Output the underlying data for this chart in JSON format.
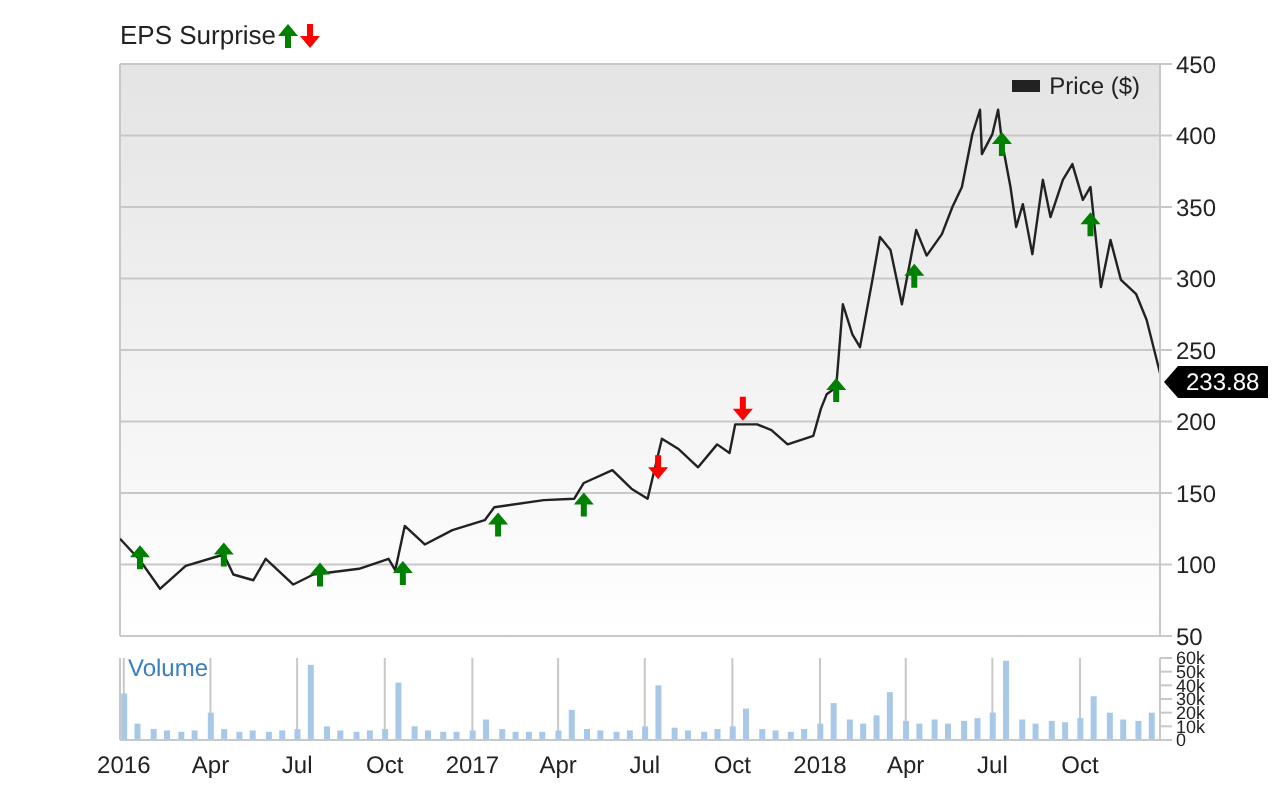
{
  "chart_data": [
    {
      "type": "line",
      "title": "EPS Surprise",
      "xlim": [
        "2015-12-28",
        "2018-12-24"
      ],
      "xticks": [
        {
          "value": "2016-01-01",
          "label": null
        },
        {
          "value": "2016-04-01",
          "label": null
        },
        {
          "value": "2016-07-01",
          "label": null
        },
        {
          "value": "2016-10-01",
          "label": null
        },
        {
          "value": "2017-01-01",
          "label": null
        },
        {
          "value": "2017-04-01",
          "label": null
        },
        {
          "value": "2017-07-01",
          "label": null
        },
        {
          "value": "2017-10-01",
          "label": null
        },
        {
          "value": "2018-01-01",
          "label": null
        },
        {
          "value": "2018-04-01",
          "label": null
        },
        {
          "value": "2018-07-01",
          "label": null
        },
        {
          "value": "2018-10-01",
          "label": null
        }
      ],
      "ylim": [
        50,
        450
      ],
      "yticks": [
        50,
        100,
        150,
        200,
        250,
        300,
        350,
        400,
        450
      ],
      "grid": true,
      "legend": "top right",
      "tick_labels": "y",
      "annotations": [
        {
          "text": "233.88",
          "x": "2018-12-24",
          "y": 233.88
        }
      ],
      "series": [
        {
          "name": "Price ($)",
          "type": "line",
          "color": "#222222",
          "x": [
            "2015-12-28",
            "2016-01-18",
            "2016-02-08",
            "2016-03-06",
            "2016-04-15",
            "2016-04-25",
            "2016-05-16",
            "2016-05-29",
            "2016-06-27",
            "2016-07-18",
            "2016-09-04",
            "2016-10-05",
            "2016-10-12",
            "2016-10-22",
            "2016-11-12",
            "2016-12-11",
            "2017-01-14",
            "2017-01-24",
            "2017-03-17",
            "2017-04-18",
            "2017-04-28",
            "2017-05-28",
            "2017-06-17",
            "2017-07-04",
            "2017-07-19",
            "2017-08-05",
            "2017-08-26",
            "2017-09-15",
            "2017-09-28",
            "2017-10-04",
            "2017-10-27",
            "2017-11-11",
            "2017-11-28",
            "2017-12-25",
            "2018-01-02",
            "2018-01-08",
            "2018-01-18",
            "2018-01-25",
            "2018-02-04",
            "2018-02-12",
            "2018-02-25",
            "2018-03-05",
            "2018-03-16",
            "2018-03-28",
            "2018-04-12",
            "2018-04-23",
            "2018-05-09",
            "2018-05-20",
            "2018-05-30",
            "2018-06-10",
            "2018-06-18",
            "2018-06-20",
            "2018-07-01",
            "2018-07-07",
            "2018-07-11",
            "2018-07-20",
            "2018-07-26",
            "2018-08-02",
            "2018-08-12",
            "2018-08-23",
            "2018-08-31",
            "2018-09-13",
            "2018-09-23",
            "2018-10-04",
            "2018-10-12",
            "2018-10-23",
            "2018-11-02",
            "2018-11-13",
            "2018-11-29",
            "2018-12-10",
            "2018-12-24"
          ],
          "values": [
            118,
            103,
            83,
            99,
            107,
            93,
            89,
            104,
            86,
            93,
            97,
            104,
            96,
            127,
            114,
            124,
            131,
            140,
            145,
            146,
            157,
            166,
            153,
            146,
            188,
            181,
            168,
            184,
            178,
            198,
            198,
            194,
            184,
            190,
            209,
            219,
            224,
            282,
            261,
            252,
            299,
            329,
            320,
            282,
            334,
            316,
            331,
            350,
            364,
            401,
            418,
            387,
            401,
            418,
            396,
            364,
            336,
            352,
            317,
            369,
            343,
            369,
            380,
            355,
            364,
            294,
            327,
            299,
            289,
            271,
            233.88
          ]
        },
        {
          "type": "scatter",
          "marker": "triangle",
          "color": "#008000",
          "x": [
            "2016-01-18",
            "2016-04-15",
            "2016-07-25",
            "2016-10-20",
            "2017-01-28",
            "2017-04-28",
            "2018-01-18",
            "2018-04-10",
            "2018-07-11",
            "2018-10-12"
          ],
          "values": [
            105,
            107,
            93,
            94,
            128,
            142,
            222,
            302,
            394,
            338
          ]
        },
        {
          "type": "scatter",
          "marker": "triangle",
          "color": "#ff0000",
          "x": [
            "2017-07-15",
            "2017-10-12"
          ],
          "values": [
            168,
            209
          ]
        }
      ]
    },
    {
      "type": "bar",
      "ylabel": "Volume",
      "xlim": [
        "2015-12-28",
        "2018-12-24"
      ],
      "xticks": [
        {
          "value": "2016-01-01",
          "label": "2016"
        },
        {
          "value": "2016-04-01",
          "label": "Apr"
        },
        {
          "value": "2016-07-01",
          "label": "Jul"
        },
        {
          "value": "2016-10-01",
          "label": "Oct"
        },
        {
          "value": "2017-01-01",
          "label": "2017"
        },
        {
          "value": "2017-04-01",
          "label": "Apr"
        },
        {
          "value": "2017-07-01",
          "label": "Jul"
        },
        {
          "value": "2017-10-01",
          "label": "Oct"
        },
        {
          "value": "2018-01-01",
          "label": "2018"
        },
        {
          "value": "2018-04-01",
          "label": "Apr"
        },
        {
          "value": "2018-07-01",
          "label": "Jul"
        },
        {
          "value": "2018-10-01",
          "label": "Oct"
        }
      ],
      "ylim": [
        0,
        60000
      ],
      "yticks": [
        0,
        {
          "value": 10000,
          "label": "10k"
        },
        {
          "value": 20000,
          "label": "20k"
        },
        {
          "value": 30000,
          "label": "30k"
        },
        {
          "value": 40000,
          "label": "40k"
        },
        {
          "value": 50000,
          "label": "50k"
        },
        {
          "value": 60000,
          "label": "60k"
        }
      ],
      "grid": "x",
      "color": "#a9c8e8",
      "x": [
        "2016-01-01",
        "2016-01-15",
        "2016-02-01",
        "2016-02-15",
        "2016-03-01",
        "2016-03-15",
        "2016-04-01",
        "2016-04-15",
        "2016-05-01",
        "2016-05-15",
        "2016-06-01",
        "2016-06-15",
        "2016-07-01",
        "2016-07-15",
        "2016-08-01",
        "2016-08-15",
        "2016-09-01",
        "2016-09-15",
        "2016-10-01",
        "2016-10-15",
        "2016-11-01",
        "2016-11-15",
        "2016-12-01",
        "2016-12-15",
        "2017-01-01",
        "2017-01-15",
        "2017-02-01",
        "2017-02-15",
        "2017-03-01",
        "2017-03-15",
        "2017-04-01",
        "2017-04-15",
        "2017-05-01",
        "2017-05-15",
        "2017-06-01",
        "2017-06-15",
        "2017-07-01",
        "2017-07-15",
        "2017-08-01",
        "2017-08-15",
        "2017-09-01",
        "2017-09-15",
        "2017-10-01",
        "2017-10-15",
        "2017-11-01",
        "2017-11-15",
        "2017-12-01",
        "2017-12-15",
        "2018-01-01",
        "2018-01-15",
        "2018-02-01",
        "2018-02-15",
        "2018-03-01",
        "2018-03-15",
        "2018-04-01",
        "2018-04-15",
        "2018-05-01",
        "2018-05-15",
        "2018-06-01",
        "2018-06-15",
        "2018-07-01",
        "2018-07-15",
        "2018-08-01",
        "2018-08-15",
        "2018-09-01",
        "2018-09-15",
        "2018-10-01",
        "2018-10-15",
        "2018-11-01",
        "2018-11-15",
        "2018-12-01",
        "2018-12-15"
      ],
      "values": [
        34000,
        12000,
        8000,
        7000,
        6000,
        7000,
        20000,
        8000,
        6000,
        7000,
        6000,
        7000,
        8000,
        55000,
        10000,
        7000,
        6000,
        7000,
        8000,
        42000,
        10000,
        7000,
        6000,
        6000,
        7000,
        15000,
        8000,
        6000,
        6000,
        6000,
        7000,
        22000,
        8000,
        7000,
        6000,
        7000,
        10000,
        40000,
        9000,
        7000,
        6000,
        8000,
        10000,
        23000,
        8000,
        7000,
        6000,
        8000,
        12000,
        27000,
        15000,
        12000,
        18000,
        35000,
        14000,
        12000,
        15000,
        12000,
        14000,
        16000,
        20000,
        58000,
        15000,
        12000,
        14000,
        13000,
        16000,
        32000,
        20000,
        15000,
        14000,
        20000
      ]
    }
  ]
}
